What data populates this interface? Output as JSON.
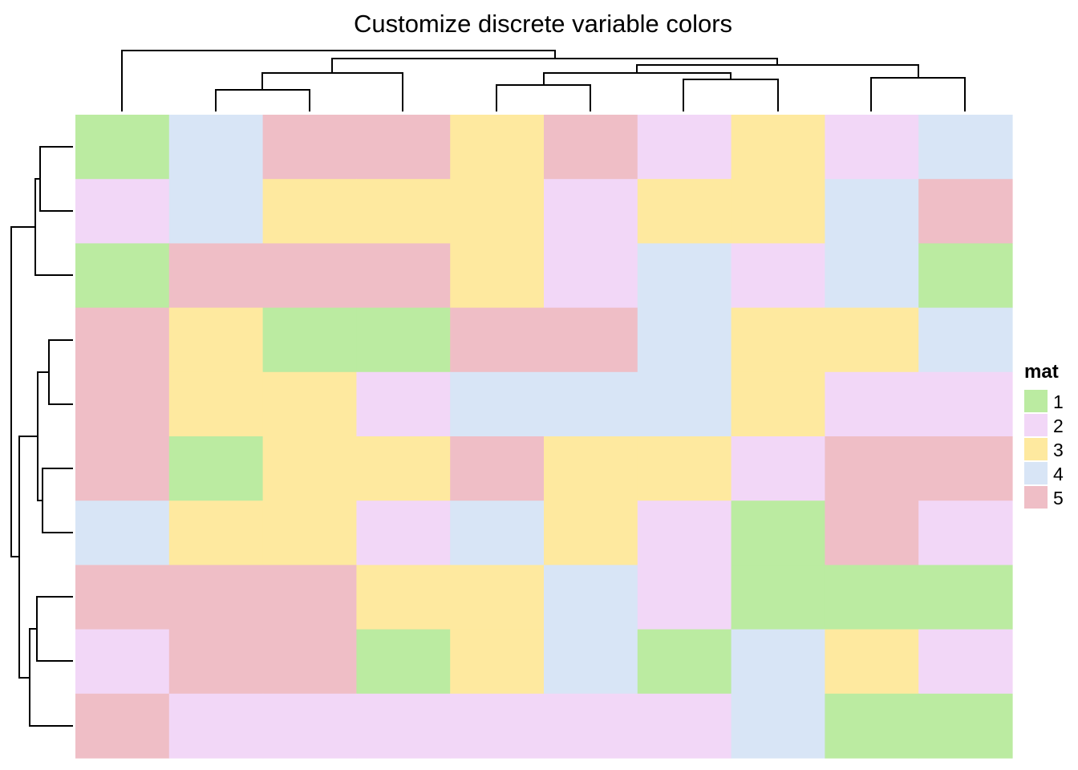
{
  "chart_data": {
    "type": "heatmap",
    "title": "Customize discrete variable colors",
    "xlabel": "",
    "ylabel": "",
    "row_dendrogram": true,
    "column_dendrogram": true,
    "colors": {
      "1": "#bbeba1",
      "2": "#f2d7f7",
      "3": "#fee99f",
      "4": "#d8e5f6",
      "5": "#efbec6"
    },
    "legend": {
      "title": "mat",
      "position": "right",
      "entries": [
        {
          "label": "1",
          "value": 1
        },
        {
          "label": "2",
          "value": 2
        },
        {
          "label": "3",
          "value": 3
        },
        {
          "label": "4",
          "value": 4
        },
        {
          "label": "5",
          "value": 5
        }
      ]
    },
    "matrix": [
      [
        1,
        4,
        5,
        5,
        3,
        5,
        2,
        3,
        2,
        4
      ],
      [
        2,
        4,
        3,
        3,
        3,
        2,
        3,
        3,
        4,
        5
      ],
      [
        1,
        5,
        5,
        5,
        3,
        2,
        4,
        2,
        4,
        1
      ],
      [
        5,
        3,
        1,
        1,
        5,
        5,
        4,
        3,
        3,
        4
      ],
      [
        5,
        3,
        3,
        2,
        4,
        4,
        4,
        3,
        2,
        2
      ],
      [
        5,
        1,
        3,
        3,
        5,
        3,
        3,
        2,
        5,
        5
      ],
      [
        4,
        3,
        3,
        2,
        4,
        3,
        2,
        1,
        5,
        2
      ],
      [
        5,
        5,
        5,
        3,
        3,
        4,
        2,
        1,
        1,
        1
      ],
      [
        2,
        5,
        5,
        1,
        3,
        4,
        1,
        4,
        3,
        2
      ],
      [
        5,
        2,
        2,
        2,
        2,
        2,
        2,
        4,
        1,
        1
      ]
    ]
  }
}
